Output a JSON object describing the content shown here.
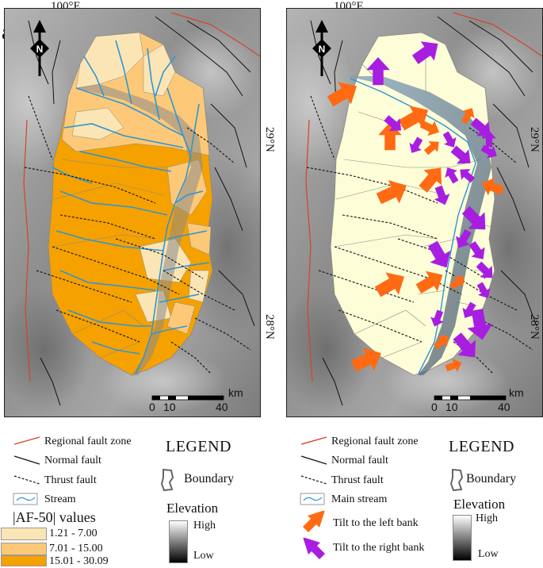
{
  "panels": {
    "a": {
      "label": "a",
      "lon_label": "100°E",
      "lat_labels": [
        "29°N",
        "28°N"
      ],
      "scale": {
        "unit": "km",
        "ticks": [
          "0",
          "10",
          "40"
        ]
      }
    },
    "b": {
      "label": "b",
      "lon_label": "100°E",
      "lat_labels": [
        "29°N",
        "28°N"
      ],
      "scale": {
        "unit": "km",
        "ticks": [
          "0",
          "10",
          "40"
        ]
      }
    }
  },
  "legend_a": {
    "regional_fault": "Regional fault zone",
    "normal_fault": "Normal fault",
    "thrust_fault": "Thrust fault",
    "stream": "Stream",
    "title": "LEGEND",
    "boundary": "Boundary",
    "elevation": "Elevation",
    "high": "High",
    "low": "Low",
    "af_title": "|AF-50| values",
    "classes": [
      {
        "label": "1.21 - 7.00",
        "color": "#fbe5b4"
      },
      {
        "label": "7.01 - 15.00",
        "color": "#fdc978"
      },
      {
        "label": "15.01 - 30.09",
        "color": "#f5a100"
      }
    ]
  },
  "legend_b": {
    "regional_fault": "Regional fault zone",
    "normal_fault": "Normal fault",
    "thrust_fault": "Thrust fault",
    "stream": "Main stream",
    "title": "LEGEND",
    "boundary": "Boundary",
    "elevation": "Elevation",
    "high": "High",
    "low": "Low",
    "tilt_left": "Tilt to the left bank",
    "tilt_right": "Tilt to the right bank",
    "tilt_left_color": "#ff6a13",
    "tilt_right_color": "#a81ee0"
  },
  "colors": {
    "basin_b": "#fdfdd8",
    "stream": "#2e95d4",
    "regional_fault": "#d3442a",
    "fault": "#111111"
  }
}
